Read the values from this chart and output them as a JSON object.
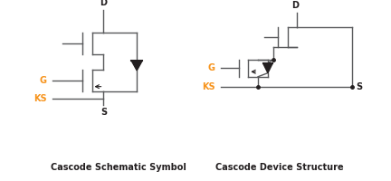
{
  "title_left": "Cascode Schematic Symbol",
  "title_right": "Cascode Device Structure",
  "text_color": "#231f20",
  "line_color": "#58595b",
  "dot_color": "#231f20",
  "background": "#ffffff",
  "label_G": "G",
  "label_KS": "KS",
  "label_D": "D",
  "label_S": "S",
  "color_G": "#f7941d",
  "color_KS": "#f7941d",
  "color_D": "#231f20",
  "color_S": "#231f20",
  "lw": 1.0
}
